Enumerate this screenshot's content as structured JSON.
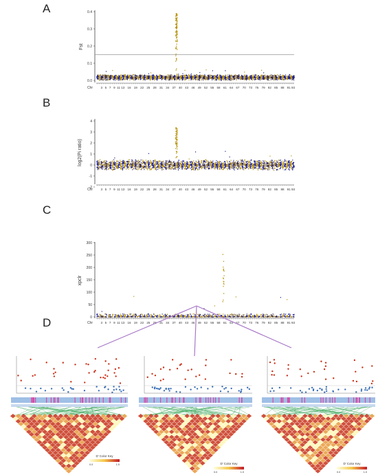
{
  "colors": {
    "blue": "#1f1f8f",
    "gold": "#b8930b",
    "ld_hi": "#c8331a",
    "ld_lo": "#fff7b0",
    "bar": "#9fbfe6",
    "pink": "#d84aa6"
  },
  "panels": {
    "A": {
      "label": "A",
      "ylabel": "Fst",
      "yticks": [
        "0.4",
        "0.3",
        "0.2",
        "0.1",
        "0.0"
      ],
      "ylim": [
        0,
        0.4
      ],
      "threshold": 0.15,
      "peak_chr": 38,
      "peak_value": 0.39
    },
    "B": {
      "label": "B",
      "ylabel": "log2(Pi ratio)",
      "yticks": [
        "4",
        "3",
        "2",
        "1",
        "0",
        "-1",
        "-2"
      ],
      "ylim": [
        -2,
        4
      ],
      "peak_chr": 38,
      "peak_value": 3.4
    },
    "C": {
      "label": "C",
      "ylabel": "xpclr",
      "yticks": [
        "300",
        "250",
        "200",
        "150",
        "100",
        "50",
        "0"
      ],
      "ylim": [
        0,
        300
      ],
      "peak_chr": 60,
      "peak_value": 290
    },
    "D": {
      "label": "D",
      "ld_key_labels": [
        "D' Color Key",
        "D' Color Key",
        "D' Color Key"
      ],
      "ld_key_min": "0.0",
      "ld_key_max": "1.0"
    }
  },
  "chromosome_axis": {
    "prefix": "Chr",
    "tick_labels": [
      "3",
      "5",
      "7",
      "9",
      "11",
      "13",
      "16",
      "19",
      "22",
      "25",
      "28",
      "31",
      "34",
      "37",
      "40",
      "43",
      "46",
      "49",
      "52",
      "55",
      "58",
      "61",
      "64",
      "67",
      "70",
      "73",
      "76",
      "79",
      "82",
      "85",
      "88",
      "91",
      "93"
    ],
    "n_chromosomes": 93
  },
  "chart_data": [
    {
      "type": "scatter",
      "title": "A",
      "ylabel": "Fst",
      "ylim": [
        0,
        0.4
      ],
      "x_axis": "Chr 1-93",
      "series": [
        {
          "name": "",
          "values": []
        }
      ],
      "threshold": 0.15,
      "peak": {
        "chr": 38,
        "y": 0.39
      }
    },
    {
      "type": "scatter",
      "title": "B",
      "ylabel": "log2(Pi ratio)",
      "ylim": [
        -2,
        4
      ],
      "x_axis": "Chr 1-93",
      "peak": {
        "chr": 38,
        "y": 3.4
      }
    },
    {
      "type": "scatter",
      "title": "C",
      "ylabel": "xpclr",
      "ylim": [
        0,
        300
      ],
      "x_axis": "Chr 1-93",
      "peak": {
        "chr": 60,
        "y": 290
      }
    },
    {
      "type": "heatmap",
      "title": "D",
      "n_heatmaps": 3,
      "legend": "D' Color Key",
      "range": [
        0.0,
        1.0
      ]
    }
  ]
}
